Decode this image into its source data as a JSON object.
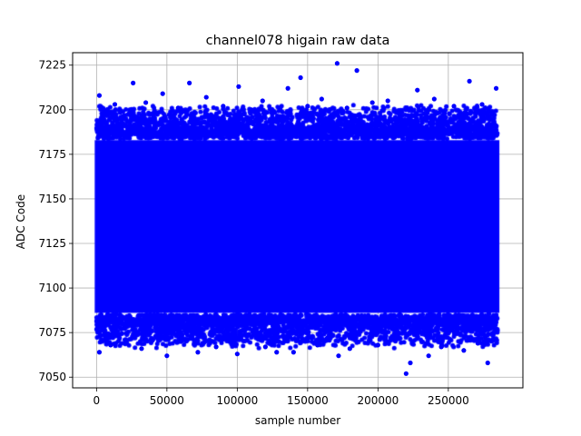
{
  "chart_data": {
    "type": "scatter",
    "title": "channel078 higain raw data",
    "xlabel": "sample number",
    "ylabel": "ADC Code",
    "xlim": [
      -17000,
      303000
    ],
    "ylim": [
      7044,
      7232
    ],
    "xticks": [
      0,
      50000,
      100000,
      150000,
      200000,
      250000
    ],
    "xtick_labels": [
      "0",
      "50000",
      "100000",
      "150000",
      "200000",
      "250000"
    ],
    "yticks": [
      7050,
      7075,
      7100,
      7125,
      7150,
      7175,
      7200,
      7225
    ],
    "ytick_labels": [
      "7050",
      "7075",
      "7100",
      "7125",
      "7150",
      "7175",
      "7200",
      "7225"
    ],
    "grid": true,
    "marker_color": "#0000ff",
    "dense_band": {
      "x_range": [
        0,
        285000
      ],
      "y_range": [
        7083,
        7186
      ]
    },
    "outlier_points": [
      {
        "x": 171000,
        "y": 7226
      },
      {
        "x": 185000,
        "y": 7222
      },
      {
        "x": 145000,
        "y": 7218
      },
      {
        "x": 265000,
        "y": 7216
      },
      {
        "x": 26000,
        "y": 7215
      },
      {
        "x": 66000,
        "y": 7215
      },
      {
        "x": 284000,
        "y": 7212
      },
      {
        "x": 136000,
        "y": 7212
      },
      {
        "x": 101000,
        "y": 7213
      },
      {
        "x": 47000,
        "y": 7209
      },
      {
        "x": 2000,
        "y": 7208
      },
      {
        "x": 228000,
        "y": 7211
      },
      {
        "x": 78000,
        "y": 7207
      },
      {
        "x": 160000,
        "y": 7206
      },
      {
        "x": 207000,
        "y": 7205
      },
      {
        "x": 240000,
        "y": 7206
      },
      {
        "x": 35000,
        "y": 7204
      },
      {
        "x": 118000,
        "y": 7205
      },
      {
        "x": 274000,
        "y": 7203
      },
      {
        "x": 196000,
        "y": 7204
      },
      {
        "x": 90000,
        "y": 7202
      },
      {
        "x": 13000,
        "y": 7203
      },
      {
        "x": 254000,
        "y": 7202
      },
      {
        "x": 58000,
        "y": 7201
      },
      {
        "x": 150000,
        "y": 7202
      },
      {
        "x": 110000,
        "y": 7200
      },
      {
        "x": 220000,
        "y": 7200
      },
      {
        "x": 178000,
        "y": 7201
      },
      {
        "x": 220000,
        "y": 7052
      },
      {
        "x": 223000,
        "y": 7058
      },
      {
        "x": 278000,
        "y": 7058
      },
      {
        "x": 50000,
        "y": 7062
      },
      {
        "x": 172000,
        "y": 7062
      },
      {
        "x": 236000,
        "y": 7062
      },
      {
        "x": 2000,
        "y": 7064
      },
      {
        "x": 100000,
        "y": 7063
      },
      {
        "x": 128000,
        "y": 7064
      },
      {
        "x": 72000,
        "y": 7064
      },
      {
        "x": 140000,
        "y": 7064
      },
      {
        "x": 32000,
        "y": 7066
      },
      {
        "x": 180000,
        "y": 7066
      },
      {
        "x": 261000,
        "y": 7065
      },
      {
        "x": 120000,
        "y": 7067
      },
      {
        "x": 10000,
        "y": 7068
      },
      {
        "x": 85000,
        "y": 7067
      },
      {
        "x": 157000,
        "y": 7068
      },
      {
        "x": 200000,
        "y": 7068
      },
      {
        "x": 245000,
        "y": 7067
      },
      {
        "x": 60000,
        "y": 7070
      },
      {
        "x": 271000,
        "y": 7069
      },
      {
        "x": 40000,
        "y": 7071
      },
      {
        "x": 212000,
        "y": 7071
      },
      {
        "x": 93000,
        "y": 7072
      },
      {
        "x": 164000,
        "y": 7072
      }
    ]
  }
}
